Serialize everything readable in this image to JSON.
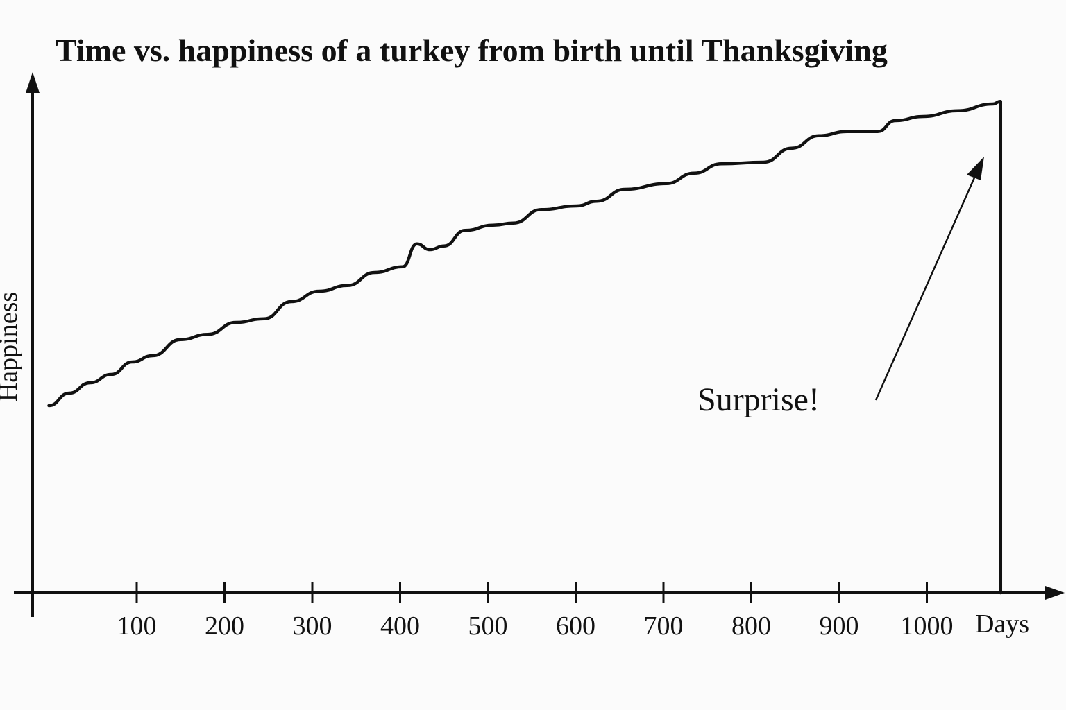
{
  "chart_data": {
    "type": "line",
    "title": "Time vs. happiness of a turkey from birth until Thanksgiving",
    "xlabel": "Days",
    "ylabel": "Happiness",
    "x_ticks": [
      100,
      200,
      300,
      400,
      500,
      600,
      700,
      800,
      900,
      1000
    ],
    "y_ticks": [],
    "ylim": [
      0,
      100
    ],
    "grid": false,
    "legend": "none",
    "colors": {
      "line": "#111111",
      "background": "#fbfbfb"
    },
    "series": [
      {
        "x": [
          0,
          23,
          47,
          71,
          95,
          118,
          150,
          181,
          213,
          245,
          276,
          308,
          340,
          371,
          403,
          419,
          434,
          450,
          474,
          506,
          529,
          561,
          601,
          624,
          656,
          703,
          735,
          766,
          814,
          846,
          877,
          909,
          944,
          964,
          996,
          1035,
          1075,
          1084,
          1084
        ],
        "y": [
          36.0,
          38.4,
          40.4,
          42.0,
          44.4,
          45.6,
          48.7,
          49.7,
          52.0,
          52.7,
          56.0,
          58.0,
          59.1,
          61.6,
          62.7,
          67.1,
          66.0,
          66.7,
          69.7,
          70.7,
          71.1,
          73.7,
          74.4,
          75.3,
          77.6,
          78.7,
          80.7,
          82.5,
          82.8,
          85.5,
          87.9,
          88.7,
          88.7,
          90.8,
          91.6,
          92.7,
          94.0,
          94.5,
          0
        ]
      }
    ],
    "annotations": [
      {
        "text": "Surprise!",
        "arrow": true
      }
    ]
  }
}
